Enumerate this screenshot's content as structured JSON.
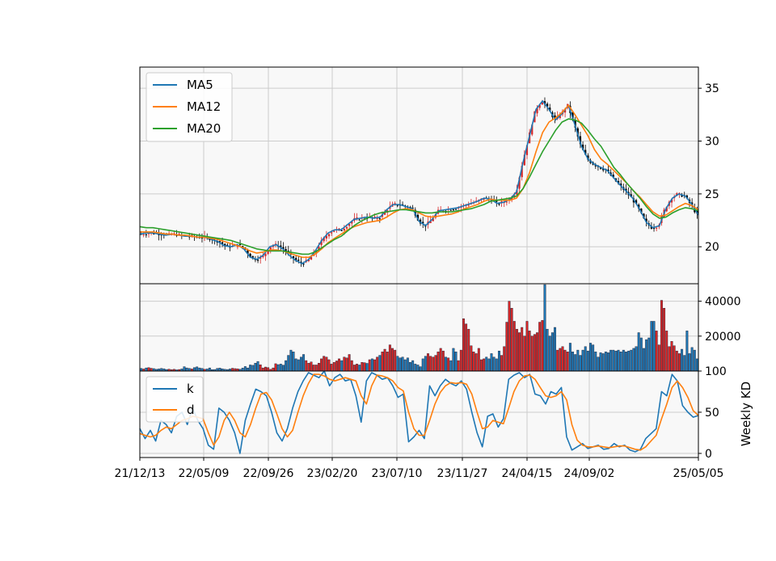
{
  "colors": {
    "panel_bg": "#f8f8f8",
    "grid": "#cccccc",
    "ma5": "#1f77b4",
    "ma12": "#ff7f0e",
    "ma20": "#2ca02c",
    "k": "#1f77b4",
    "d": "#ff7f0e",
    "candle_up": "#d62728",
    "candle_down": "#000000",
    "vol_up": "#d62728",
    "vol_down": "#1f77b4"
  },
  "chart_data": [
    {
      "type": "line",
      "panel": "price",
      "x_ticks": [
        "21/12/13",
        "22/05/09",
        "22/09/26",
        "23/02/20",
        "23/07/10",
        "23/11/27",
        "24/04/15",
        "24/09/02",
        "25/05/05"
      ],
      "yticks": [
        "20",
        "25",
        "30",
        "35"
      ],
      "ylim": [
        16.5,
        37
      ],
      "legend": {
        "placement": "upper-left",
        "entries": [
          "MA5",
          "MA12",
          "MA20"
        ]
      },
      "grid": true,
      "series": [
        {
          "name": "MA5",
          "values": [
            21.2,
            21.3,
            21.3,
            21.2,
            21.1,
            21.2,
            21.1,
            21.0,
            21.0,
            20.9,
            20.9,
            20.7,
            20.5,
            20.1,
            20.0,
            20.2,
            19.8,
            19.0,
            18.8,
            19.2,
            20.0,
            20.2,
            19.8,
            19.2,
            18.7,
            18.4,
            18.8,
            19.6,
            20.6,
            21.3,
            21.6,
            21.6,
            22.1,
            22.6,
            22.7,
            22.8,
            22.7,
            22.8,
            23.5,
            24.0,
            24.0,
            23.8,
            23.6,
            22.4,
            22.0,
            22.6,
            23.4,
            23.5,
            23.6,
            23.7,
            23.9,
            24.1,
            24.3,
            24.6,
            24.5,
            24.1,
            24.2,
            24.5,
            25.2,
            28.0,
            30.5,
            33.0,
            33.8,
            33.0,
            32.0,
            32.6,
            33.4,
            31.5,
            29.5,
            28.3,
            27.8,
            27.5,
            27.2,
            26.5,
            25.8,
            25.2,
            24.5,
            23.5,
            22.3,
            21.8,
            22.0,
            23.6,
            24.6,
            25.0,
            24.8,
            24.0,
            23.0
          ]
        },
        {
          "name": "MA12",
          "values": [
            21.4,
            21.4,
            21.4,
            21.3,
            21.2,
            21.2,
            21.1,
            21.1,
            21.0,
            20.9,
            20.9,
            20.8,
            20.7,
            20.5,
            20.3,
            20.1,
            19.9,
            19.6,
            19.4,
            19.5,
            19.7,
            19.7,
            19.6,
            19.4,
            19.2,
            19.0,
            19.0,
            19.3,
            19.8,
            20.4,
            20.8,
            21.2,
            21.6,
            21.9,
            22.1,
            22.3,
            22.4,
            22.5,
            22.8,
            23.2,
            23.5,
            23.6,
            23.5,
            23.2,
            22.9,
            22.8,
            22.9,
            23.0,
            23.1,
            23.3,
            23.6,
            23.8,
            24.0,
            24.3,
            24.5,
            24.4,
            24.4,
            24.4,
            24.6,
            25.5,
            27.0,
            29.0,
            30.8,
            31.8,
            32.2,
            32.7,
            33.4,
            32.5,
            31.5,
            30.5,
            29.2,
            28.3,
            27.8,
            27.2,
            26.6,
            26.0,
            25.3,
            24.7,
            24.0,
            23.3,
            22.9,
            23.0,
            23.4,
            23.8,
            24.1,
            23.9,
            23.5
          ]
        },
        {
          "name": "MA20",
          "values": [
            21.9,
            21.8,
            21.8,
            21.7,
            21.6,
            21.5,
            21.4,
            21.3,
            21.2,
            21.1,
            21.0,
            20.9,
            20.8,
            20.7,
            20.6,
            20.4,
            20.2,
            20.0,
            19.8,
            19.7,
            19.6,
            19.6,
            19.6,
            19.5,
            19.4,
            19.3,
            19.3,
            19.5,
            19.9,
            20.3,
            20.7,
            21.0,
            21.5,
            22.0,
            22.4,
            22.7,
            23.0,
            23.2,
            23.3,
            23.4,
            23.5,
            23.5,
            23.4,
            23.3,
            23.2,
            23.2,
            23.3,
            23.3,
            23.3,
            23.4,
            23.5,
            23.6,
            23.8,
            24.0,
            24.3,
            24.4,
            24.5,
            24.6,
            24.8,
            25.5,
            26.6,
            27.8,
            29.0,
            30.0,
            31.0,
            31.8,
            32.1,
            32.0,
            31.7,
            31.0,
            30.2,
            29.5,
            28.5,
            27.5,
            26.8,
            26.0,
            25.3,
            24.6,
            23.8,
            23.1,
            22.7,
            22.8,
            23.2,
            23.5,
            23.7,
            23.6,
            23.4
          ]
        }
      ]
    },
    {
      "type": "bar",
      "panel": "volume",
      "yticks": [
        "20000",
        "40000"
      ],
      "ylim": [
        0,
        50000
      ],
      "grid": true,
      "values": [
        1500,
        1200,
        1800,
        2000,
        1600,
        1400,
        1000,
        1200,
        1500,
        1300,
        900,
        1100,
        800,
        1000,
        700,
        900,
        1200,
        2500,
        1800,
        1500,
        1200,
        2000,
        2400,
        1800,
        1500,
        1000,
        1200,
        1800,
        800,
        900,
        1500,
        1700,
        1300,
        1000,
        900,
        1200,
        1600,
        1400,
        1300,
        1000,
        1700,
        2600,
        1800,
        3500,
        3300,
        4500,
        5500,
        3600,
        1800,
        2300,
        2000,
        1000,
        1800,
        4200,
        3700,
        4000,
        3400,
        6000,
        9000,
        12000,
        11000,
        7000,
        6500,
        8000,
        9500,
        6000,
        4500,
        5200,
        3500,
        3500,
        4500,
        7000,
        8500,
        8000,
        6500,
        4000,
        5000,
        5800,
        7000,
        6000,
        8000,
        7500,
        9500,
        6000,
        3500,
        4000,
        3500,
        5000,
        4800,
        4400,
        6500,
        7000,
        6500,
        8000,
        9000,
        11000,
        12500,
        11000,
        15000,
        13000,
        12000,
        8500,
        7500,
        8000,
        6500,
        7500,
        5000,
        6000,
        4000,
        3500,
        2500,
        7000,
        8500,
        10000,
        8500,
        8000,
        9000,
        11000,
        13000,
        11500,
        8000,
        7500,
        6000,
        13000,
        11000,
        6000,
        12000,
        30000,
        27000,
        24000,
        14500,
        11000,
        10000,
        13000,
        6500,
        7000,
        8000,
        7000,
        10000,
        8000,
        7000,
        11500,
        9000,
        14000,
        28000,
        40000,
        36000,
        28500,
        24000,
        22000,
        25000,
        20000,
        28500,
        23000,
        20000,
        21000,
        22000,
        28000,
        29000,
        49500,
        24000,
        20000,
        22000,
        25000,
        12000,
        13000,
        14000,
        12000,
        11000,
        16000,
        11000,
        9500,
        12000,
        9000,
        12000,
        14000,
        11500,
        16000,
        15000,
        11000,
        8000,
        10500,
        10000,
        11000,
        10500,
        12000,
        12000,
        11500,
        12000,
        11000,
        12000,
        11000,
        11500,
        12000,
        13000,
        14000,
        22000,
        19000,
        13000,
        18000,
        19000,
        28500,
        28500,
        23000,
        15000,
        40500,
        36000,
        23000,
        14000,
        17000,
        14500,
        11500,
        10000,
        12500,
        9000,
        23000,
        10000,
        13500,
        12000,
        7000
      ]
    },
    {
      "type": "line",
      "panel": "kd",
      "ylabel": "Weekly KD",
      "yticks": [
        "0",
        "50",
        "100"
      ],
      "ylim": [
        -5,
        100
      ],
      "legend": {
        "placement": "upper-left",
        "entries": [
          "k",
          "d"
        ]
      },
      "grid": true,
      "series": [
        {
          "name": "k",
          "values": [
            30,
            18,
            28,
            15,
            40,
            35,
            25,
            45,
            50,
            35,
            55,
            40,
            30,
            10,
            5,
            55,
            50,
            40,
            25,
            0,
            40,
            60,
            78,
            75,
            70,
            50,
            25,
            15,
            30,
            55,
            75,
            88,
            98,
            95,
            92,
            100,
            82,
            92,
            96,
            88,
            90,
            70,
            38,
            88,
            98,
            95,
            90,
            92,
            82,
            68,
            72,
            14,
            20,
            28,
            18,
            82,
            70,
            82,
            90,
            85,
            82,
            88,
            78,
            50,
            25,
            8,
            45,
            48,
            32,
            42,
            90,
            95,
            98,
            92,
            96,
            72,
            70,
            60,
            75,
            72,
            80,
            20,
            4,
            8,
            12,
            6,
            8,
            10,
            5,
            6,
            12,
            8,
            10,
            4,
            2,
            5,
            18,
            24,
            30,
            75,
            70,
            96,
            88,
            58,
            50,
            44,
            46
          ]
        },
        {
          "name": "d",
          "values": [
            24,
            22,
            20,
            22,
            28,
            32,
            30,
            35,
            40,
            42,
            45,
            44,
            42,
            25,
            10,
            20,
            40,
            50,
            40,
            25,
            20,
            35,
            55,
            72,
            74,
            65,
            48,
            30,
            20,
            28,
            50,
            70,
            85,
            96,
            96,
            94,
            90,
            88,
            90,
            92,
            90,
            88,
            70,
            60,
            82,
            95,
            94,
            92,
            88,
            80,
            76,
            50,
            30,
            22,
            22,
            40,
            60,
            74,
            82,
            86,
            85,
            86,
            84,
            72,
            50,
            30,
            32,
            40,
            38,
            36,
            55,
            75,
            88,
            94,
            95,
            90,
            80,
            70,
            68,
            70,
            75,
            65,
            35,
            16,
            10,
            8,
            8,
            9,
            8,
            7,
            8,
            9,
            9,
            7,
            5,
            4,
            8,
            15,
            22,
            42,
            60,
            80,
            88,
            80,
            68,
            52,
            46
          ]
        }
      ]
    }
  ]
}
